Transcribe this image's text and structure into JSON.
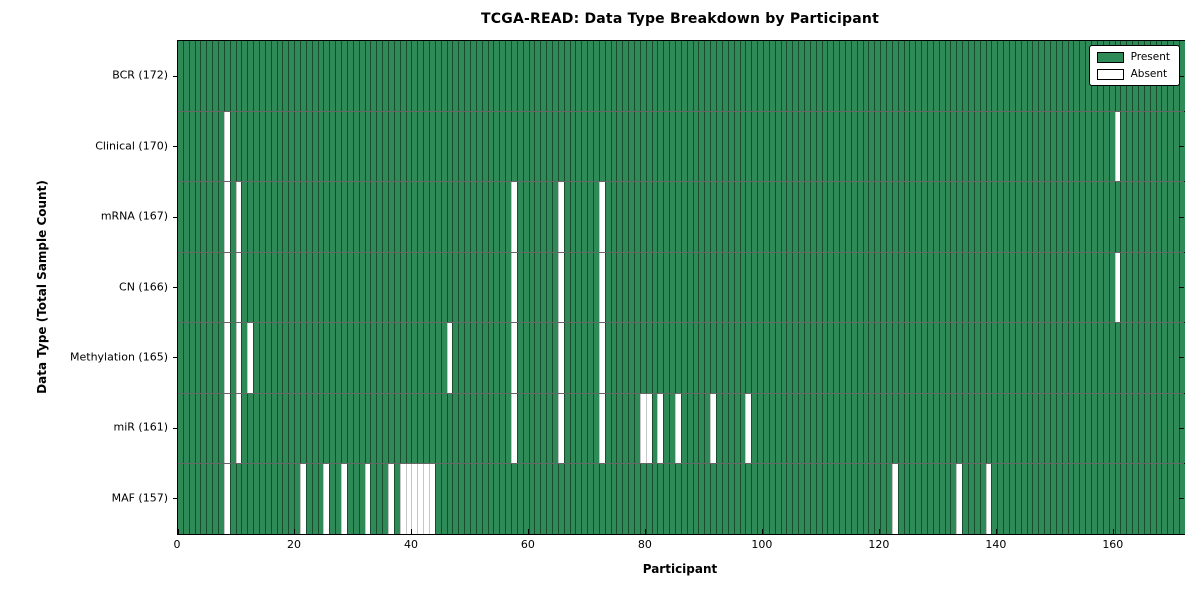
{
  "figure": {
    "title": "TCGA-READ: Data Type Breakdown by Participant",
    "xlabel": "Participant",
    "ylabel": "Data Type (Total Sample Count)"
  },
  "legend": {
    "present_label": "Present",
    "absent_label": "Absent"
  },
  "colors": {
    "present": "#2e8b57",
    "absent": "#ffffff",
    "cell_edge": "rgba(0,0,0,0.45)",
    "row_divider": "rgba(0,0,0,0.6)",
    "spine": "#000000"
  },
  "chart_data": {
    "type": "heatmap",
    "title": "TCGA-READ: Data Type Breakdown by Participant",
    "xlabel": "Participant",
    "ylabel": "Data Type (Total Sample Count)",
    "legend": [
      "Present",
      "Absent"
    ],
    "legend_position": "upper right",
    "grid": false,
    "total_participants": 172,
    "xlim": [
      0,
      172
    ],
    "x_ticks": [
      0,
      20,
      40,
      60,
      80,
      100,
      120,
      140,
      160
    ],
    "rows": [
      {
        "label": "BCR",
        "count": 172,
        "display": "BCR (172)",
        "absent_participants": []
      },
      {
        "label": "Clinical",
        "count": 170,
        "display": "Clinical (170)",
        "absent_participants": [
          8,
          160
        ]
      },
      {
        "label": "mRNA",
        "count": 167,
        "display": "mRNA (167)",
        "absent_participants": [
          8,
          10,
          57,
          65,
          72
        ]
      },
      {
        "label": "CN",
        "count": 166,
        "display": "CN (166)",
        "absent_participants": [
          8,
          10,
          57,
          65,
          72,
          160
        ]
      },
      {
        "label": "Methylation",
        "count": 165,
        "display": "Methylation (165)",
        "absent_participants": [
          8,
          10,
          12,
          46,
          57,
          65,
          72
        ]
      },
      {
        "label": "miR",
        "count": 161,
        "display": "miR (161)",
        "absent_participants": [
          8,
          10,
          57,
          65,
          72,
          79,
          80,
          82,
          85,
          91,
          97
        ]
      },
      {
        "label": "MAF",
        "count": 157,
        "display": "MAF (157)",
        "absent_participants": [
          8,
          21,
          25,
          28,
          32,
          36,
          38,
          39,
          40,
          41,
          42,
          43,
          122,
          133,
          138
        ]
      }
    ]
  }
}
